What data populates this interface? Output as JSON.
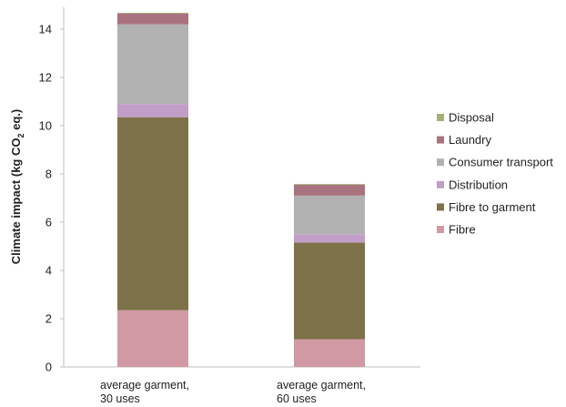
{
  "chart_data": {
    "type": "bar",
    "stacked": true,
    "categories": [
      "average garment,\n30 uses",
      "average garment,\n60 uses"
    ],
    "series": [
      {
        "name": "Fibre",
        "color": "#d199a4",
        "values": [
          2.35,
          1.15
        ]
      },
      {
        "name": "Fibre to garment",
        "color": "#7d7249",
        "values": [
          8.0,
          4.0
        ]
      },
      {
        "name": "Distribution",
        "color": "#c19ec7",
        "values": [
          0.55,
          0.35
        ]
      },
      {
        "name": "Consumer transport",
        "color": "#b1b1b1",
        "values": [
          3.3,
          1.6
        ]
      },
      {
        "name": "Laundry",
        "color": "#a9727f",
        "values": [
          0.45,
          0.45
        ]
      },
      {
        "name": "Disposal",
        "color": "#a4b078",
        "values": [
          0.03,
          0.03
        ]
      }
    ],
    "ylabel_main": "Climate impact (kg CO",
    "ylabel_sub": "2",
    "ylabel_end": " eq.)",
    "ylim": [
      0,
      15
    ],
    "yticks": [
      0,
      2,
      4,
      6,
      8,
      10,
      12,
      14
    ],
    "legend_position": "right",
    "legend_order": [
      "Disposal",
      "Laundry",
      "Consumer transport",
      "Distribution",
      "Fibre to garment",
      "Fibre"
    ],
    "grid": false
  }
}
